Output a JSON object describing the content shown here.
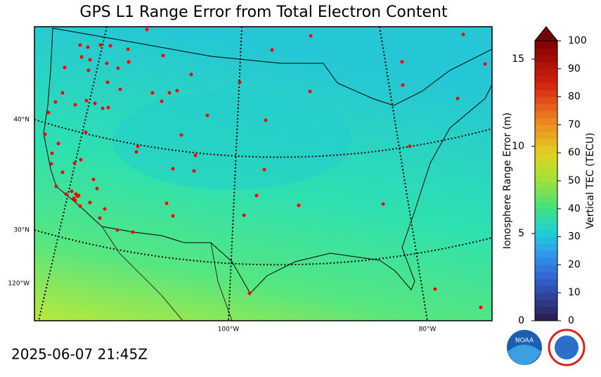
{
  "title": "GPS L1 Range Error from Total Electron Content",
  "timestamp": "2025-06-07 21:45Z",
  "map": {
    "lat_labels": [
      "40°N",
      "30°N"
    ],
    "lon_labels": [
      "120°W",
      "100°W",
      "80°W"
    ]
  },
  "colorbar": {
    "left_label": "Ionosphere Range Error (m)",
    "left_lim": [
      0,
      16.05
    ],
    "left_ticks": [
      0,
      5,
      10,
      15
    ],
    "right_label": "Vertical TEC (TECU)",
    "right_lim": [
      0,
      100
    ],
    "right_ticks": [
      0,
      10,
      20,
      30,
      40,
      50,
      60,
      70,
      80,
      90,
      100
    ]
  }
}
